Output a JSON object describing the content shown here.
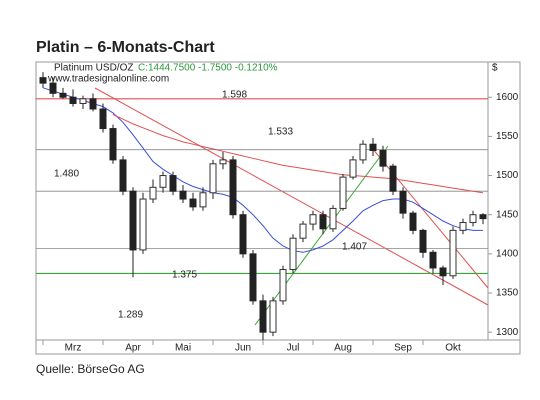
{
  "chart_data": {
    "type": "candlestick",
    "title": "Platin – 6-Monats-Chart",
    "instrument": "Platinum USD/OZ",
    "quote": "C:1444.7500 -1.7500 -0.1210%",
    "website": "www.tradesignalonline.com",
    "unit": "$",
    "source": "Quelle: BörseGo AG",
    "categories": [
      null,
      null,
      null,
      "Mrz",
      null,
      null,
      null,
      null,
      null,
      "Apr",
      null,
      null,
      null,
      null,
      "Mai",
      null,
      null,
      null,
      null,
      null,
      "Jun",
      null,
      null,
      null,
      null,
      "Jul",
      null,
      null,
      null,
      null,
      "Aug",
      null,
      null,
      null,
      null,
      null,
      "Sep",
      null,
      null,
      null,
      null,
      "Okt",
      null,
      null,
      null
    ],
    "open": [
      1625,
      1618,
      1605,
      1600,
      1592,
      1598,
      1585,
      1560,
      1520,
      1480,
      1405,
      1470,
      1485,
      1500,
      1480,
      1470,
      1460,
      1478,
      1515,
      1520,
      1450,
      1400,
      1340,
      1300,
      1340,
      1380,
      1420,
      1438,
      1450,
      1432,
      1458,
      1498,
      1520,
      1540,
      1532,
      1512,
      1480,
      1452,
      1430,
      1402,
      1382,
      1372,
      1430,
      1440,
      1450
    ],
    "high": [
      1632,
      1625,
      1612,
      1610,
      1602,
      1605,
      1592,
      1565,
      1525,
      1485,
      1478,
      1495,
      1505,
      1505,
      1488,
      1478,
      1485,
      1520,
      1530,
      1525,
      1455,
      1405,
      1348,
      1345,
      1385,
      1425,
      1442,
      1455,
      1455,
      1462,
      1502,
      1525,
      1545,
      1548,
      1538,
      1515,
      1485,
      1455,
      1432,
      1405,
      1385,
      1435,
      1445,
      1455,
      1452
    ],
    "low": [
      1612,
      1600,
      1598,
      1588,
      1585,
      1582,
      1555,
      1515,
      1475,
      1370,
      1400,
      1465,
      1478,
      1475,
      1465,
      1455,
      1455,
      1470,
      1508,
      1445,
      1395,
      1335,
      1289,
      1295,
      1335,
      1375,
      1415,
      1430,
      1425,
      1428,
      1455,
      1495,
      1515,
      1525,
      1505,
      1475,
      1445,
      1425,
      1395,
      1375,
      1360,
      1368,
      1425,
      1435,
      1438
    ],
    "close": [
      1618,
      1605,
      1600,
      1592,
      1598,
      1585,
      1560,
      1520,
      1480,
      1405,
      1470,
      1485,
      1500,
      1480,
      1470,
      1460,
      1478,
      1515,
      1520,
      1450,
      1400,
      1340,
      1300,
      1340,
      1380,
      1420,
      1438,
      1450,
      1432,
      1458,
      1498,
      1520,
      1540,
      1532,
      1512,
      1480,
      1452,
      1430,
      1402,
      1382,
      1372,
      1430,
      1440,
      1450,
      1445
    ],
    "averages": [
      {
        "color": "#3a4fd6",
        "values": [
          1612,
          1608,
          1604,
          1600,
          1596,
          1592,
          1588,
          1580,
          1568,
          1552,
          1535,
          1518,
          1508,
          1500,
          1492,
          1486,
          1482,
          1478,
          1476,
          1472,
          1462,
          1450,
          1436,
          1420,
          1410,
          1404,
          1402,
          1405,
          1410,
          1418,
          1430,
          1442,
          1455,
          1462,
          1468,
          1470,
          1470,
          1466,
          1458,
          1450,
          1442,
          1436,
          1432,
          1430,
          1430
        ]
      },
      {
        "color": "#e05050",
        "values": [
          null,
          null,
          null,
          null,
          null,
          null,
          null,
          1578,
          1572,
          1566,
          1561,
          1556,
          1551,
          1547,
          1543,
          1540,
          1537,
          1534,
          1531,
          1528,
          1525,
          1522,
          1519,
          1516,
          1513,
          1511,
          1509,
          1507,
          1505,
          1503,
          1501,
          1500,
          1499,
          1498,
          1497,
          1496,
          1494,
          1492,
          1490,
          1488,
          1486,
          1484,
          1482,
          1480,
          1478
        ]
      }
    ],
    "up_color": "#333333",
    "down_color": "#222222",
    "levels": [
      {
        "value": 1598,
        "label": "1.598",
        "color": "#e05050"
      },
      {
        "value": 1533,
        "label": "1.533",
        "color": "#888888"
      },
      {
        "value": 1480,
        "label": "1.480",
        "color": "#888888"
      },
      {
        "value": 1407,
        "label": "1.407",
        "color": "#888888"
      },
      {
        "value": 1375,
        "label": "1.375",
        "color": "#3aa63a"
      },
      {
        "value": 1289,
        "label": "1.289",
        "color": null
      }
    ],
    "ylim": [
      1290,
      1645
    ],
    "yticks": [
      1300,
      1350,
      1400,
      1450,
      1500,
      1550,
      1600
    ]
  }
}
